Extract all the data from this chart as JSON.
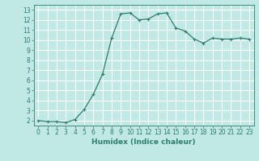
{
  "x": [
    0,
    1,
    2,
    3,
    4,
    5,
    6,
    7,
    8,
    9,
    10,
    11,
    12,
    13,
    14,
    15,
    16,
    17,
    18,
    19,
    20,
    21,
    22,
    23
  ],
  "y": [
    2.0,
    1.9,
    1.9,
    1.8,
    2.1,
    3.1,
    4.6,
    6.6,
    10.2,
    12.6,
    12.7,
    12.0,
    12.1,
    12.6,
    12.7,
    11.2,
    10.9,
    10.1,
    9.7,
    10.2,
    10.1,
    10.1,
    10.2,
    10.1
  ],
  "line_color": "#2e7d6e",
  "marker": "+",
  "marker_size": 3,
  "bg_color": "#c0e8e4",
  "grid_color": "#ffffff",
  "xlabel": "Humidex (Indice chaleur)",
  "xlim": [
    -0.5,
    23.5
  ],
  "ylim": [
    1.5,
    13.5
  ],
  "xticks": [
    0,
    1,
    2,
    3,
    4,
    5,
    6,
    7,
    8,
    9,
    10,
    11,
    12,
    13,
    14,
    15,
    16,
    17,
    18,
    19,
    20,
    21,
    22,
    23
  ],
  "yticks": [
    2,
    3,
    4,
    5,
    6,
    7,
    8,
    9,
    10,
    11,
    12,
    13
  ],
  "xlabel_fontsize": 6.5,
  "tick_fontsize": 5.5,
  "line_width": 0.9,
  "markeredgewidth": 0.8
}
